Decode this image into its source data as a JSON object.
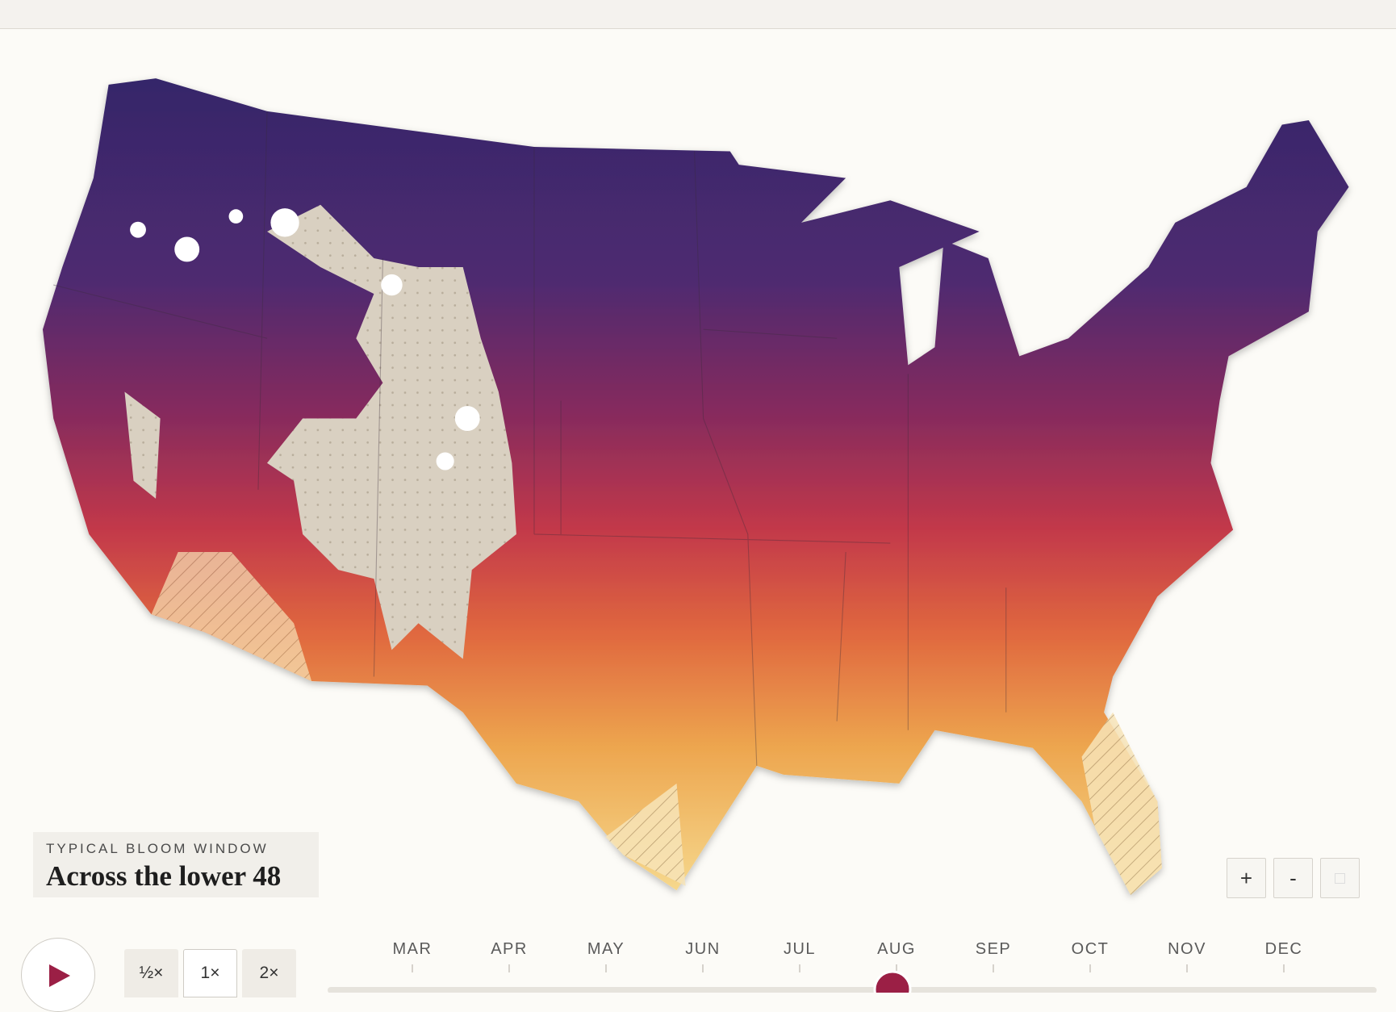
{
  "header": {
    "eyebrow": "TYPICAL BLOOM WINDOW",
    "title": "Across the lower 48"
  },
  "zoom_controls": [
    "+",
    "-"
  ],
  "speed_options": [
    "½×",
    "1×",
    "2×"
  ],
  "timeline": {
    "months": [
      "MAR",
      "APR",
      "MAY",
      "JUN",
      "JUL",
      "AUG",
      "SEP",
      "OCT",
      "NOV",
      "DEC"
    ]
  }
}
